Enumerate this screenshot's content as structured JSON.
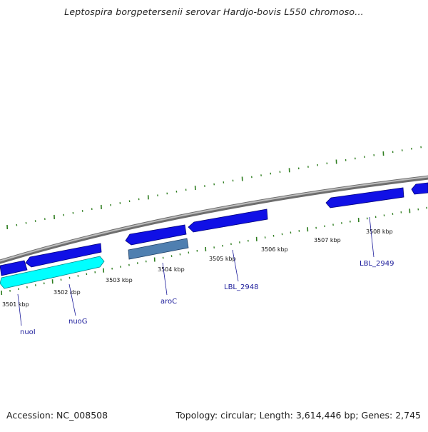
{
  "title": "Leptospira borgpetersenii serovar Hardjo-bovis L550 chromoso...",
  "footer": {
    "accession": "Accession: NC_008508",
    "summary": "Topology: circular; Length: 3,614,446 bp; Genes: 2,745"
  },
  "colors": {
    "backbone": "#8a8a8a",
    "tick": "#2e7d1f",
    "cds": "#1010e6",
    "cds_light": "#00ffff",
    "cds_steel": "#4f7fb0",
    "label_line": "#1a1a9a"
  },
  "ticks": {
    "unit": "kbp",
    "labels": [
      "3501 kbp",
      "3502 kbp",
      "3503 kbp",
      "3504 kbp",
      "3505 kbp",
      "3506 kbp",
      "3507 kbp",
      "3508 kbp"
    ]
  },
  "gene_labels": [
    "nuoI",
    "nuoG",
    "aroC",
    "LBL_2948",
    "LBL_2949"
  ]
}
